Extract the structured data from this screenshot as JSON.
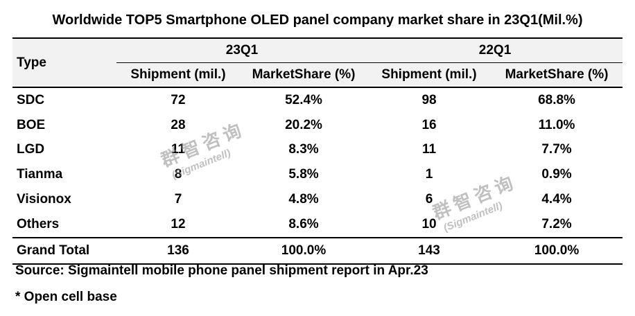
{
  "chart_data": {
    "type": "table",
    "title": "Worldwide TOP5 Smartphone OLED panel company market share in 23Q1(Mil.%)",
    "row_header": "Type",
    "groups": [
      {
        "name": "23Q1",
        "columns": [
          "Shipment (mil.)",
          "MarketShare (%)"
        ]
      },
      {
        "name": "22Q1",
        "columns": [
          "Shipment (mil.)",
          "MarketShare (%)"
        ]
      }
    ],
    "rows": [
      {
        "type": "SDC",
        "s23": "72",
        "m23": "52.4%",
        "s22": "98",
        "m22": "68.8%"
      },
      {
        "type": "BOE",
        "s23": "28",
        "m23": "20.2%",
        "s22": "16",
        "m22": "11.0%"
      },
      {
        "type": "LGD",
        "s23": "11",
        "m23": "8.3%",
        "s22": "11",
        "m22": "7.7%"
      },
      {
        "type": "Tianma",
        "s23": "8",
        "m23": "5.8%",
        "s22": "1",
        "m22": "0.9%"
      },
      {
        "type": "Visionox",
        "s23": "7",
        "m23": "4.8%",
        "s22": "6",
        "m22": "4.4%"
      },
      {
        "type": "Others",
        "s23": "12",
        "m23": "8.6%",
        "s22": "10",
        "m22": "7.2%"
      }
    ],
    "total": {
      "type": "Grand Total",
      "s23": "136",
      "m23": "100.0%",
      "s22": "143",
      "m22": "100.0%"
    }
  },
  "notes": {
    "source": "Source: Sigmaintell mobile phone panel shipment report in Apr.23",
    "footnote": "* Open cell base"
  },
  "watermark": {
    "cn": "群智咨询",
    "en": "(Sigmaintell)",
    "color": "#8c8c8c"
  }
}
